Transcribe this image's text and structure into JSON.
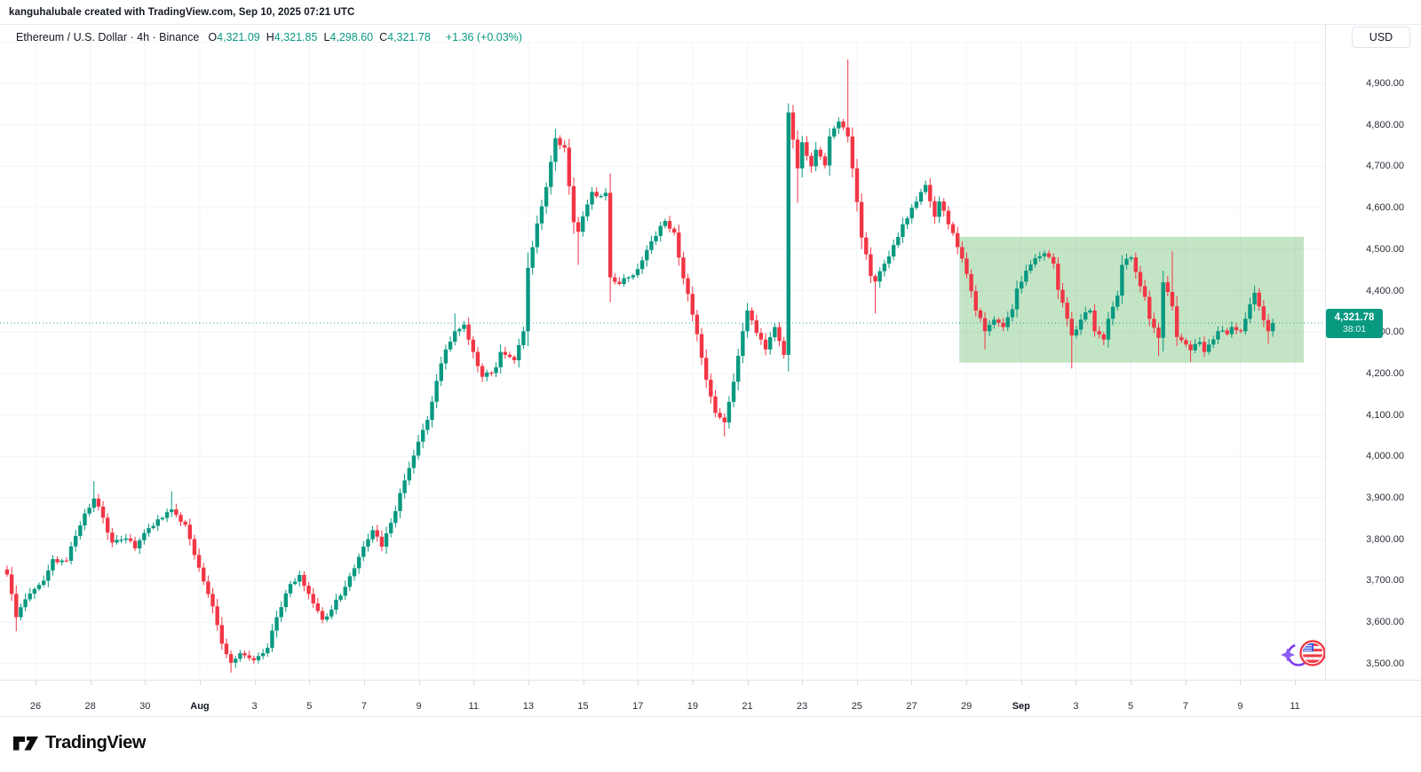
{
  "header": {
    "attribution": "kanguhalubale created with TradingView.com, Sep 10, 2025 07:21 UTC"
  },
  "symbol_bar": {
    "title": "Ethereum / U.S. Dollar · 4h · Binance",
    "ohlc": [
      {
        "label": "O",
        "value": "4,321.09"
      },
      {
        "label": "H",
        "value": "4,321.85"
      },
      {
        "label": "L",
        "value": "4,298.60"
      },
      {
        "label": "C",
        "value": "4,321.78"
      }
    ],
    "change": "+1.36 (+0.03%)"
  },
  "price_scale": {
    "currency": "USD",
    "labels": [
      "4,900.00",
      "4,800.00",
      "4,700.00",
      "4,600.00",
      "4,500.00",
      "4,400.00",
      "4,300.00",
      "4,200.00",
      "4,100.00",
      "4,000.00",
      "3,900.00",
      "3,800.00",
      "3,700.00",
      "3,600.00",
      "3,500.00"
    ],
    "label_values": [
      4900,
      4800,
      4700,
      4600,
      4500,
      4400,
      4300,
      4200,
      4100,
      4000,
      3900,
      3800,
      3700,
      3600,
      3500
    ],
    "last_price": {
      "value": "4,321.78",
      "countdown": "38:01"
    }
  },
  "time_scale": {
    "labels": [
      {
        "text": "26"
      },
      {
        "text": "28"
      },
      {
        "text": "30"
      },
      {
        "text": "Aug",
        "bold": true
      },
      {
        "text": "3"
      },
      {
        "text": "5"
      },
      {
        "text": "7"
      },
      {
        "text": "9"
      },
      {
        "text": "11"
      },
      {
        "text": "13"
      },
      {
        "text": "15"
      },
      {
        "text": "17"
      },
      {
        "text": "19"
      },
      {
        "text": "21"
      },
      {
        "text": "23"
      },
      {
        "text": "25"
      },
      {
        "text": "27"
      },
      {
        "text": "29"
      },
      {
        "text": "Sep",
        "bold": true
      },
      {
        "text": "3"
      },
      {
        "text": "5"
      },
      {
        "text": "7"
      },
      {
        "text": "9"
      },
      {
        "text": "11"
      }
    ]
  },
  "footer": {
    "brand": "TradingView"
  },
  "chart_data": {
    "type": "candlestick",
    "title": "Ethereum / U.S. Dollar",
    "symbol": "ETHUSD",
    "interval": "4h",
    "exchange": "Binance",
    "current_bar": {
      "open": 4321.09,
      "high": 4321.85,
      "low": 4298.6,
      "close": 4321.78,
      "change": 1.36,
      "change_pct": 0.03
    },
    "last_price": 4321.78,
    "y_axis": {
      "unit": "USD",
      "visible_min": 3450,
      "visible_max": 5005,
      "gridline_step": 100,
      "gridline_prices": [
        5000,
        4900,
        4800,
        4700,
        4600,
        4500,
        4400,
        4300,
        4200,
        4100,
        4000,
        3900,
        3800,
        3700,
        3600,
        3500
      ]
    },
    "x_axis": {
      "start_label": "Jul 26",
      "end_label": "Sep 11",
      "bars_total": 278,
      "bar_interval_hours": 4,
      "grid": true
    },
    "legend_position": "none",
    "highlight_box": {
      "price_top": 4530,
      "price_bottom": 4226,
      "bar_start": 208.4,
      "bar_end": 283.8,
      "description": "green consolidation-range rectangle from Aug 29 into future"
    },
    "colors": {
      "up": "#089981",
      "down": "#F23645",
      "box_fill": "rgba(76,175,80,0.33)",
      "grid": "#f0f3fa",
      "axis_text": "#2a2e39",
      "label_bg": "#089981",
      "accent_purple": "#7c3aed",
      "flag_ring": "#ef3b46"
    },
    "events": [
      {
        "name": "ai-sparkle-us-flag-event",
        "approx_date": "Sep 10"
      },
      {
        "name": "us-flag-event",
        "approx_date": "Sep 10"
      }
    ],
    "price_path": [
      [
        0,
        3715
      ],
      [
        2,
        3612,
        null,
        3578
      ],
      [
        4,
        3655
      ],
      [
        6,
        3680
      ],
      [
        8,
        3700
      ],
      [
        10,
        3752
      ],
      [
        13,
        3748
      ],
      [
        15,
        3808
      ],
      [
        17,
        3862
      ],
      [
        19,
        3898,
        3940,
        null
      ],
      [
        21,
        3852
      ],
      [
        23,
        3792
      ],
      [
        26,
        3802
      ],
      [
        28,
        3778
      ],
      [
        30,
        3815
      ],
      [
        33,
        3848
      ],
      [
        36,
        3872,
        3916,
        null
      ],
      [
        39,
        3835
      ],
      [
        41,
        3762
      ],
      [
        43,
        3698
      ],
      [
        45,
        3638
      ],
      [
        47,
        3548
      ],
      [
        49,
        3502,
        null,
        3478
      ],
      [
        51,
        3525
      ],
      [
        54,
        3508
      ],
      [
        57,
        3538
      ],
      [
        59,
        3612
      ],
      [
        62,
        3692
      ],
      [
        64,
        3714
      ],
      [
        66,
        3668
      ],
      [
        69,
        3606
      ],
      [
        71,
        3630
      ],
      [
        74,
        3685
      ],
      [
        76,
        3730
      ],
      [
        79,
        3800
      ],
      [
        80,
        3822
      ],
      [
        82,
        3782
      ],
      [
        85,
        3868
      ],
      [
        87,
        3942
      ],
      [
        89,
        4002
      ],
      [
        92,
        4088
      ],
      [
        94,
        4182
      ],
      [
        96,
        4258
      ],
      [
        98,
        4302,
        4345,
        null
      ],
      [
        100,
        4318
      ],
      [
        102,
        4252
      ],
      [
        104,
        4192
      ],
      [
        107,
        4215
      ],
      [
        108,
        4252
      ],
      [
        111,
        4232
      ],
      [
        113,
        4302
      ],
      [
        114,
        4455
      ],
      [
        116,
        4562
      ],
      [
        118,
        4650
      ],
      [
        120,
        4768,
        4790,
        null
      ],
      [
        122,
        4745
      ],
      [
        123,
        4652
      ],
      [
        124,
        4565
      ],
      [
        125,
        4542,
        null,
        4462
      ],
      [
        127,
        4608
      ],
      [
        128,
        4638
      ],
      [
        130,
        4628
      ],
      [
        131,
        4636
      ],
      [
        132,
        4432,
        null,
        4372
      ],
      [
        134,
        4416
      ],
      [
        136,
        4432
      ],
      [
        138,
        4452
      ],
      [
        140,
        4498
      ],
      [
        142,
        4532
      ],
      [
        143,
        4556
      ],
      [
        144,
        4568
      ],
      [
        146,
        4540
      ],
      [
        147,
        4480
      ],
      [
        149,
        4392
      ],
      [
        151,
        4295
      ],
      [
        153,
        4185
      ],
      [
        155,
        4105
      ],
      [
        157,
        4082,
        null,
        4048
      ],
      [
        159,
        4180
      ],
      [
        161,
        4302
      ],
      [
        162,
        4352
      ],
      [
        164,
        4298
      ],
      [
        166,
        4258
      ],
      [
        168,
        4312
      ],
      [
        170,
        4245
      ],
      [
        171,
        4830,
        4852,
        4205
      ],
      [
        173,
        4695,
        null,
        4612
      ],
      [
        174,
        4758
      ],
      [
        176,
        4700
      ],
      [
        177,
        4740
      ],
      [
        179,
        4702
      ],
      [
        180,
        4772
      ],
      [
        182,
        4808
      ],
      [
        184,
        4772,
        4958,
        null
      ],
      [
        185,
        4695
      ],
      [
        187,
        4528
      ],
      [
        189,
        4435
      ],
      [
        190,
        4422,
        null,
        4345
      ],
      [
        192,
        4465
      ],
      [
        194,
        4510
      ],
      [
        196,
        4560
      ],
      [
        198,
        4600
      ],
      [
        200,
        4638
      ],
      [
        201,
        4655
      ],
      [
        203,
        4578
      ],
      [
        204,
        4615
      ],
      [
        206,
        4560
      ],
      [
        208,
        4505
      ],
      [
        210,
        4440
      ],
      [
        212,
        4352
      ],
      [
        214,
        4302,
        null,
        4258
      ],
      [
        216,
        4330
      ],
      [
        218,
        4312
      ],
      [
        220,
        4355
      ],
      [
        221,
        4405
      ],
      [
        223,
        4448
      ],
      [
        225,
        4478
      ],
      [
        227,
        4490
      ],
      [
        229,
        4465
      ],
      [
        230,
        4402
      ],
      [
        232,
        4332
      ],
      [
        233,
        4292,
        null,
        4212
      ],
      [
        235,
        4330
      ],
      [
        237,
        4352
      ],
      [
        238,
        4302
      ],
      [
        240,
        4282
      ],
      [
        241,
        4332
      ],
      [
        243,
        4388
      ],
      [
        244,
        4462
      ],
      [
        246,
        4480
      ],
      [
        247,
        4445
      ],
      [
        249,
        4385
      ],
      [
        250,
        4332
      ],
      [
        252,
        4286,
        null,
        4242
      ],
      [
        253,
        4420,
        4448,
        null
      ],
      [
        255,
        4362,
        4495,
        null
      ],
      [
        256,
        4288
      ],
      [
        258,
        4270
      ],
      [
        259,
        4256,
        null,
        4228
      ],
      [
        261,
        4276
      ],
      [
        262,
        4252
      ],
      [
        264,
        4282
      ],
      [
        265,
        4302
      ],
      [
        267,
        4295
      ],
      [
        268,
        4312
      ],
      [
        270,
        4302
      ],
      [
        271,
        4332
      ],
      [
        273,
        4395,
        4412,
        null
      ],
      [
        274,
        4362
      ],
      [
        276,
        4302,
        null,
        4272
      ],
      [
        277,
        4321.78
      ]
    ]
  }
}
